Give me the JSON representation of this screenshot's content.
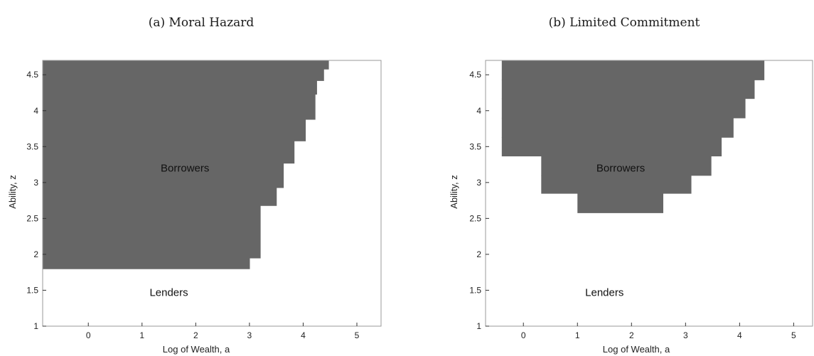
{
  "chart_data": [
    {
      "type": "area",
      "caption": "(a) Moral Hazard",
      "xlabel": "Log of Wealth, a",
      "ylabel": "Ability, z",
      "xlim": [
        -0.85,
        5.45
      ],
      "ylim": [
        1.0,
        4.7
      ],
      "xticks": [
        0,
        1,
        2,
        3,
        4,
        5
      ],
      "yticks": [
        1,
        1.5,
        2,
        2.5,
        3,
        3.5,
        4,
        4.5
      ],
      "grid": false,
      "fill_color": "#666666",
      "region_labels": [
        {
          "text": "Borrowers",
          "x": 1.8,
          "y": 3.2
        },
        {
          "text": "Lenders",
          "x": 1.5,
          "y": 1.47
        }
      ],
      "bands": [
        {
          "z0": 1.8,
          "z1": 1.95,
          "a_min": -0.85,
          "a_max": 3.0
        },
        {
          "z0": 1.95,
          "z1": 2.68,
          "a_min": -0.85,
          "a_max": 3.2
        },
        {
          "z0": 2.68,
          "z1": 2.93,
          "a_min": -0.85,
          "a_max": 3.5
        },
        {
          "z0": 2.93,
          "z1": 3.27,
          "a_min": -0.85,
          "a_max": 3.63
        },
        {
          "z0": 3.27,
          "z1": 3.58,
          "a_min": -0.85,
          "a_max": 3.83
        },
        {
          "z0": 3.58,
          "z1": 3.88,
          "a_min": -0.85,
          "a_max": 4.04
        },
        {
          "z0": 3.88,
          "z1": 4.23,
          "a_min": -0.85,
          "a_max": 4.22
        },
        {
          "z0": 4.23,
          "z1": 4.42,
          "a_min": -0.85,
          "a_max": 4.25
        },
        {
          "z0": 4.42,
          "z1": 4.58,
          "a_min": -0.85,
          "a_max": 4.38
        },
        {
          "z0": 4.58,
          "z1": 4.7,
          "a_min": -0.85,
          "a_max": 4.47
        }
      ]
    },
    {
      "type": "area",
      "caption": "(b) Limited Commitment",
      "xlabel": "Log of Wealth, a",
      "ylabel": "Ability, z",
      "xlim": [
        -0.7,
        5.35
      ],
      "ylim": [
        1.0,
        4.7
      ],
      "xticks": [
        0,
        1,
        2,
        3,
        4,
        5
      ],
      "yticks": [
        1,
        1.5,
        2,
        2.5,
        3,
        3.5,
        4,
        4.5
      ],
      "grid": false,
      "fill_color": "#666666",
      "region_labels": [
        {
          "text": "Borrowers",
          "x": 1.8,
          "y": 3.2
        },
        {
          "text": "Lenders",
          "x": 1.5,
          "y": 1.47
        }
      ],
      "bands": [
        {
          "z0": 2.58,
          "z1": 2.85,
          "a_min": 1.0,
          "a_max": 2.58
        },
        {
          "z0": 2.85,
          "z1": 3.1,
          "a_min": 0.33,
          "a_max": 3.1
        },
        {
          "z0": 3.1,
          "z1": 3.37,
          "a_min": 0.33,
          "a_max": 3.47
        },
        {
          "z0": 3.37,
          "z1": 3.63,
          "a_min": -0.4,
          "a_max": 3.66
        },
        {
          "z0": 3.63,
          "z1": 3.9,
          "a_min": -0.4,
          "a_max": 3.88
        },
        {
          "z0": 3.9,
          "z1": 4.17,
          "a_min": -0.4,
          "a_max": 4.1
        },
        {
          "z0": 4.17,
          "z1": 4.43,
          "a_min": -0.4,
          "a_max": 4.27
        },
        {
          "z0": 4.43,
          "z1": 4.7,
          "a_min": -0.4,
          "a_max": 4.45
        }
      ]
    }
  ]
}
